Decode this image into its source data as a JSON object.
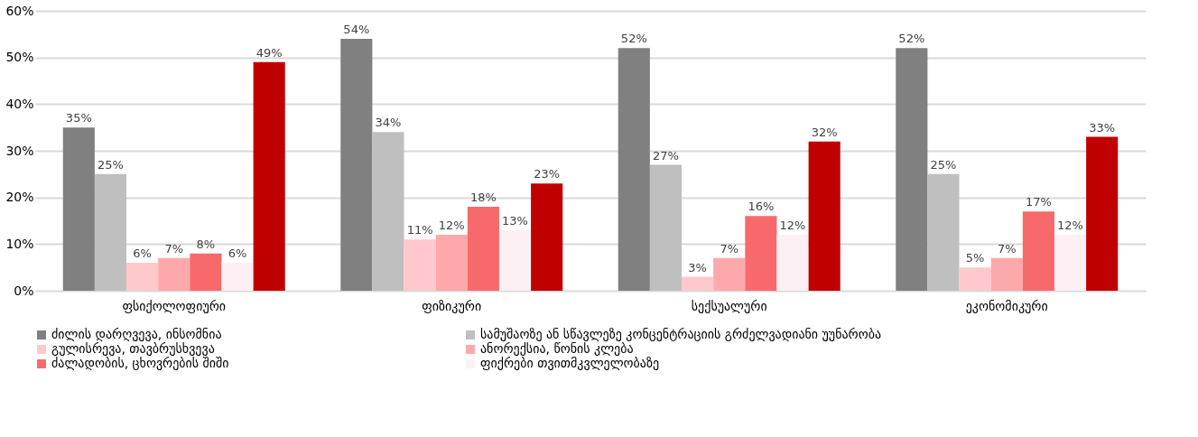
{
  "chart_data": {
    "type": "bar",
    "categories": [
      "ფსიქოლოფიური",
      "ფიზიკური",
      "სექსუალური",
      "ეკონომიკური"
    ],
    "ylim": [
      0,
      60
    ],
    "yticks": [
      {
        "value": 0,
        "label": "0%"
      },
      {
        "value": 10,
        "label": "10%"
      },
      {
        "value": 20,
        "label": "20%"
      },
      {
        "value": 30,
        "label": "30%"
      },
      {
        "value": 40,
        "label": "40%"
      },
      {
        "value": 50,
        "label": "50%"
      },
      {
        "value": 60,
        "label": "60%"
      }
    ],
    "grid": "y",
    "legend": "bottom",
    "series": [
      {
        "name": "ძილის დარღვევა, ინსომნია",
        "color": "#808080",
        "values": [
          35,
          54,
          52,
          52
        ],
        "value_labels": [
          "35%",
          "54%",
          "52%",
          "52%"
        ]
      },
      {
        "name": "სამუშაოზე ან სწავლეზე კონცენტრაციის გრძელვადიანი უუნარობა",
        "color": "#bfbfbf",
        "values": [
          25,
          34,
          27,
          25
        ],
        "value_labels": [
          "25%",
          "34%",
          "27%",
          "25%"
        ]
      },
      {
        "name": "გულისრევა, თავბრუსხვევა",
        "color": "#ffc9cc",
        "values": [
          6,
          11,
          3,
          5
        ],
        "value_labels": [
          "6%",
          "11%",
          "3%",
          "5%"
        ]
      },
      {
        "name": "ანორექსია, წონის კლება",
        "color": "#fda9ab",
        "values": [
          7,
          12,
          7,
          7
        ],
        "value_labels": [
          "7%",
          "12%",
          "7%",
          "7%"
        ]
      },
      {
        "name": "ძალადობის, ცხოვრების შიში",
        "color": "#f8696b",
        "values": [
          8,
          18,
          16,
          17
        ],
        "value_labels": [
          "8%",
          "18%",
          "16%",
          "17%"
        ]
      },
      {
        "name": "ფიქრები თვითმკვლელობაზე",
        "color": "#fdf0f4",
        "values": [
          6,
          13,
          12,
          12
        ],
        "value_labels": [
          "6%",
          "13%",
          "12%",
          "12%"
        ]
      },
      {
        "color": "#c00000",
        "values": [
          49,
          23,
          32,
          33
        ],
        "value_labels": [
          "49%",
          "23%",
          "32%",
          "33%"
        ]
      }
    ]
  }
}
